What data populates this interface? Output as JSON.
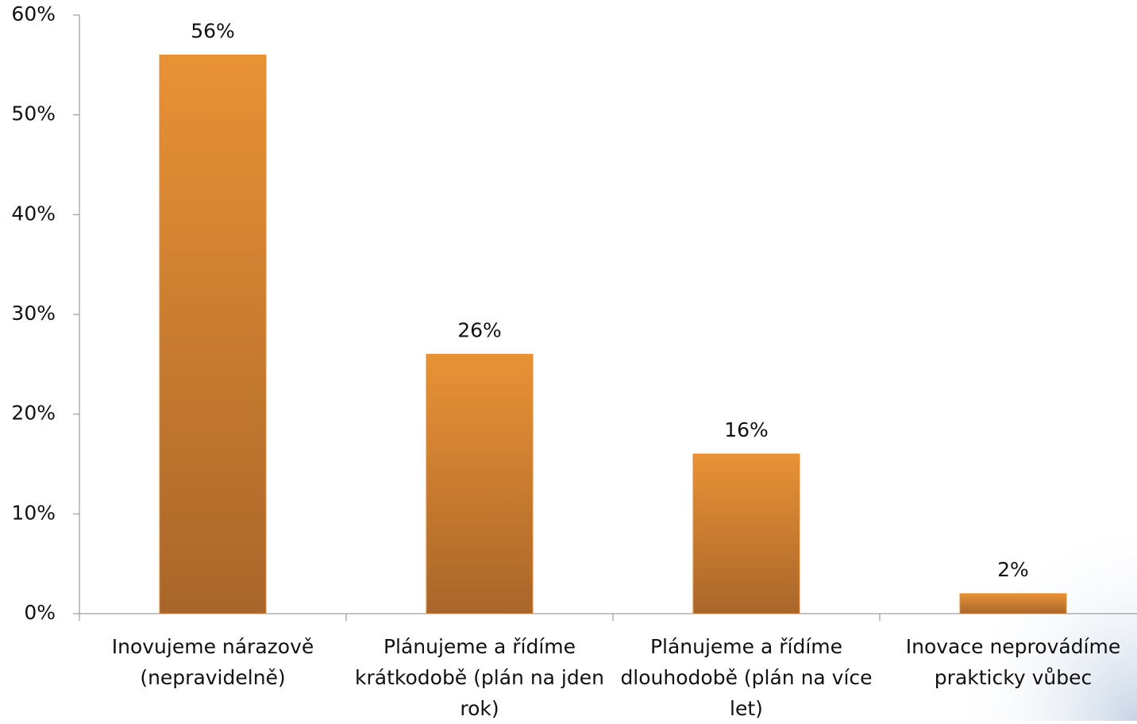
{
  "chart_data": {
    "type": "bar",
    "categories": [
      "Inovujeme nárazově (nepravidelně)",
      "Plánujeme a řídíme krátkodobě (plán na jden rok)",
      "Plánujeme a řídíme dlouhodobě (plán na více let)",
      "Inovace neprovádíme prakticky vůbec"
    ],
    "values": [
      56,
      26,
      16,
      2
    ],
    "value_labels": [
      "56%",
      "26%",
      "16%",
      "2%"
    ],
    "color": "#e08c35",
    "ylim": [
      0,
      60
    ],
    "yticks": [
      {
        "value": 0,
        "label": "0%"
      },
      {
        "value": 10,
        "label": "10%"
      },
      {
        "value": 20,
        "label": "20%"
      },
      {
        "value": 30,
        "label": "30%"
      },
      {
        "value": 40,
        "label": "40%"
      },
      {
        "value": 50,
        "label": "50%"
      },
      {
        "value": 60,
        "label": "60%"
      }
    ]
  }
}
